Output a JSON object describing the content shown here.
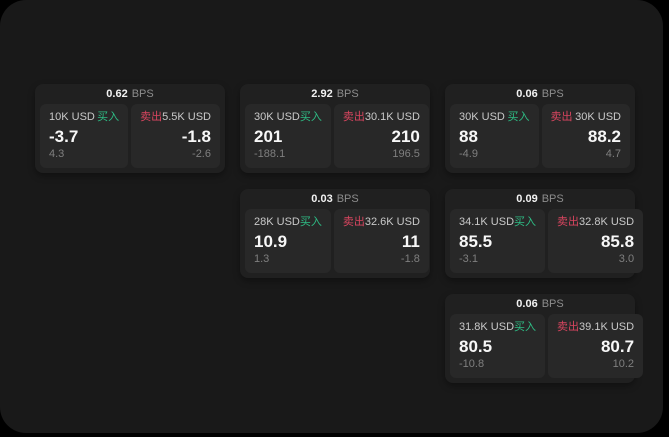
{
  "labels": {
    "bps_unit": "BPS",
    "buy": "买入",
    "sell": "卖出"
  },
  "colors": {
    "page_bg": "#191919",
    "card_bg": "#202020",
    "panel_bg": "#282828",
    "buy_green": "#2ebd85",
    "sell_red": "#d9455f"
  },
  "cards": [
    {
      "bps": "0.62",
      "buy": {
        "amount": "10K USD",
        "price": "-3.7",
        "sub": "4.3"
      },
      "sell": {
        "amount": "5.5K USD",
        "price": "-1.8",
        "sub": "-2.6"
      }
    },
    {
      "bps": "2.92",
      "buy": {
        "amount": "30K USD",
        "price": "201",
        "sub": "-188.1"
      },
      "sell": {
        "amount": "30.1K USD",
        "price": "210",
        "sub": "196.5"
      }
    },
    {
      "bps": "0.06",
      "buy": {
        "amount": "30K USD",
        "price": "88",
        "sub": "-4.9"
      },
      "sell": {
        "amount": "30K USD",
        "price": "88.2",
        "sub": "4.7"
      }
    },
    {
      "bps": "0.03",
      "buy": {
        "amount": "28K USD",
        "price": "10.9",
        "sub": "1.3"
      },
      "sell": {
        "amount": "32.6K USD",
        "price": "11",
        "sub": "-1.8"
      }
    },
    {
      "bps": "0.09",
      "buy": {
        "amount": "34.1K USD",
        "price": "85.5",
        "sub": "-3.1"
      },
      "sell": {
        "amount": "32.8K USD",
        "price": "85.8",
        "sub": "3.0"
      }
    },
    {
      "bps": "0.06",
      "buy": {
        "amount": "31.8K USD",
        "price": "80.5",
        "sub": "-10.8"
      },
      "sell": {
        "amount": "39.1K USD",
        "price": "80.7",
        "sub": "10.2"
      }
    }
  ]
}
